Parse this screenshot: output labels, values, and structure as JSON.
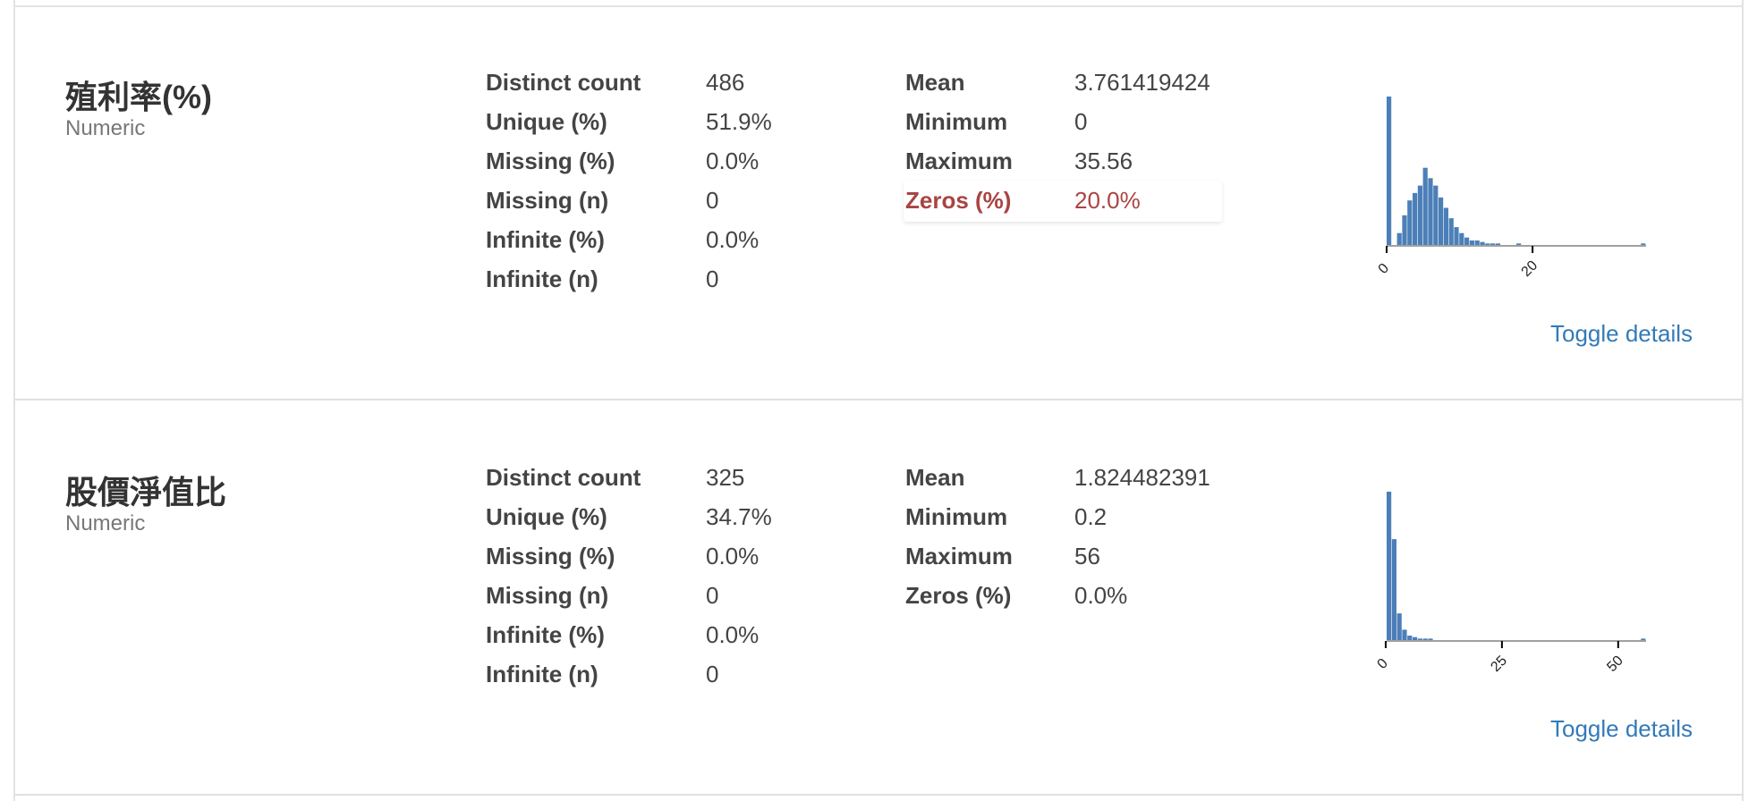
{
  "variables": [
    {
      "name": "殖利率(%)",
      "type": "Numeric",
      "stats_left": [
        {
          "label": "Distinct count",
          "value": "486"
        },
        {
          "label": "Unique (%)",
          "value": "51.9%"
        },
        {
          "label": "Missing (%)",
          "value": "0.0%"
        },
        {
          "label": "Missing (n)",
          "value": "0"
        },
        {
          "label": "Infinite (%)",
          "value": "0.0%"
        },
        {
          "label": "Infinite (n)",
          "value": "0"
        }
      ],
      "stats_right": [
        {
          "label": "Mean",
          "value": "3.761419424",
          "alert": false
        },
        {
          "label": "Minimum",
          "value": "0",
          "alert": false
        },
        {
          "label": "Maximum",
          "value": "35.56",
          "alert": false
        },
        {
          "label": "Zeros (%)",
          "value": "20.0%",
          "alert": true
        }
      ],
      "toggle_label": "Toggle details"
    },
    {
      "name": "股價淨值比",
      "type": "Numeric",
      "stats_left": [
        {
          "label": "Distinct count",
          "value": "325"
        },
        {
          "label": "Unique (%)",
          "value": "34.7%"
        },
        {
          "label": "Missing (%)",
          "value": "0.0%"
        },
        {
          "label": "Missing (n)",
          "value": "0"
        },
        {
          "label": "Infinite (%)",
          "value": "0.0%"
        },
        {
          "label": "Infinite (n)",
          "value": "0"
        }
      ],
      "stats_right": [
        {
          "label": "Mean",
          "value": "1.824482391",
          "alert": false
        },
        {
          "label": "Minimum",
          "value": "0.2",
          "alert": false
        },
        {
          "label": "Maximum",
          "value": "56",
          "alert": false
        },
        {
          "label": "Zeros (%)",
          "value": "0.0%",
          "alert": false
        }
      ],
      "toggle_label": "Toggle details"
    }
  ],
  "colors": {
    "bar": "#4c7fb8",
    "alert": "#a94442",
    "link": "#337ab7"
  },
  "chart_data": [
    {
      "type": "bar",
      "title": "",
      "xlabel": "",
      "ylabel": "",
      "xlim": [
        0,
        35.56
      ],
      "x_ticks": [
        "0",
        "20"
      ],
      "x_tick_values": [
        0,
        20
      ],
      "bin_width": 0.7112,
      "values": [
        100,
        0,
        8,
        20,
        30,
        35,
        40,
        52,
        45,
        40,
        32,
        25,
        18,
        12,
        8,
        5,
        3,
        3,
        2,
        1,
        1,
        1,
        0,
        0,
        0,
        1,
        0,
        0,
        0,
        0,
        0,
        0,
        0,
        0,
        0,
        0,
        0,
        0,
        0,
        0,
        0,
        0,
        0,
        0,
        0,
        0,
        0,
        0,
        0,
        1
      ]
    },
    {
      "type": "bar",
      "title": "",
      "xlabel": "",
      "ylabel": "",
      "xlim": [
        0.2,
        56
      ],
      "x_ticks": [
        "0",
        "25",
        "50"
      ],
      "x_tick_values": [
        0,
        25,
        50
      ],
      "bin_width": 1.116,
      "values": [
        100,
        68,
        18,
        7,
        3,
        2,
        1,
        1,
        1,
        0,
        0,
        0,
        0,
        0,
        0,
        0,
        0,
        0,
        0,
        0,
        0,
        0,
        0,
        0,
        0,
        0,
        0,
        0,
        0,
        0,
        0,
        0,
        0,
        0,
        0,
        0,
        0,
        0,
        0,
        0,
        0,
        0,
        0,
        0,
        0,
        0,
        0,
        0,
        0,
        1
      ]
    }
  ]
}
